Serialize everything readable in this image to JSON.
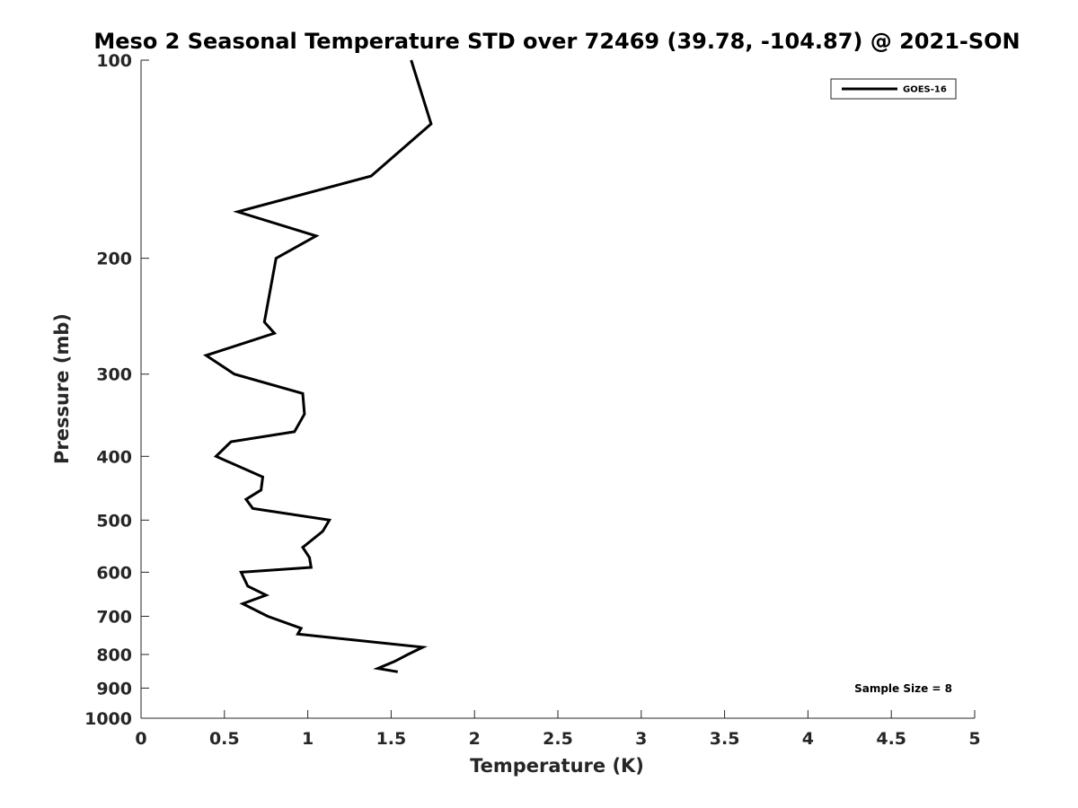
{
  "chart_data": {
    "type": "line",
    "title": "Meso 2 Seasonal Temperature STD over 72469 (39.78, -104.87) @ 2021-SON",
    "xlabel": "Temperature (K)",
    "ylabel": "Pressure (mb)",
    "xlim": [
      0,
      5
    ],
    "ylim": [
      1000,
      100
    ],
    "yscale": "log",
    "y_reversed": true,
    "x_ticks": [
      "0",
      "0.5",
      "1",
      "1.5",
      "2",
      "2.5",
      "3",
      "3.5",
      "4",
      "4.5",
      "5"
    ],
    "y_ticks": [
      "100",
      "200",
      "300",
      "400",
      "500",
      "600",
      "700",
      "800",
      "900",
      "1000"
    ],
    "grid": false,
    "legend_position": "top-right",
    "annotation": "Sample Size = 8",
    "series": [
      {
        "name": "GOES-16",
        "color": "#000000",
        "points": [
          [
            1.62,
            100
          ],
          [
            1.74,
            125
          ],
          [
            1.38,
            150
          ],
          [
            0.58,
            170
          ],
          [
            1.05,
            185
          ],
          [
            0.81,
            200
          ],
          [
            0.74,
            250
          ],
          [
            0.8,
            260
          ],
          [
            0.39,
            281
          ],
          [
            0.56,
            300
          ],
          [
            0.97,
            321
          ],
          [
            0.98,
            345
          ],
          [
            0.92,
            367
          ],
          [
            0.54,
            380
          ],
          [
            0.45,
            400
          ],
          [
            0.73,
            430
          ],
          [
            0.72,
            450
          ],
          [
            0.63,
            465
          ],
          [
            0.67,
            480
          ],
          [
            1.13,
            500
          ],
          [
            1.09,
            520
          ],
          [
            0.97,
            550
          ],
          [
            1.01,
            570
          ],
          [
            1.02,
            590
          ],
          [
            0.6,
            600
          ],
          [
            0.64,
            630
          ],
          [
            0.75,
            650
          ],
          [
            0.61,
            670
          ],
          [
            0.76,
            700
          ],
          [
            0.96,
            730
          ],
          [
            0.94,
            745
          ],
          [
            1.69,
            780
          ],
          [
            1.6,
            800
          ],
          [
            1.52,
            820
          ],
          [
            1.42,
            840
          ],
          [
            1.54,
            850
          ]
        ]
      }
    ]
  }
}
